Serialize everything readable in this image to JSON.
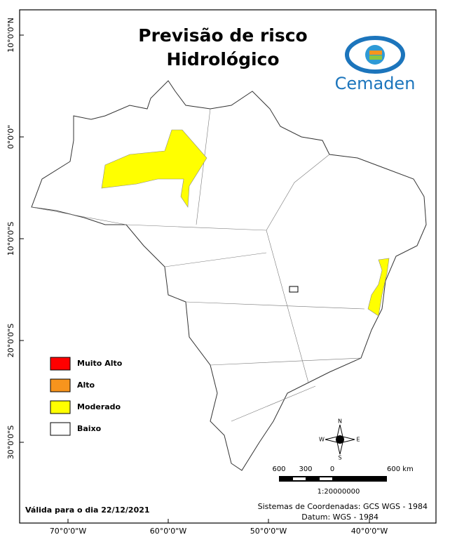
{
  "header": {
    "title_line1": "Previsão de risco",
    "title_line2": "Hidrológico",
    "logo_text": "Cemaden"
  },
  "legend": {
    "items": [
      {
        "label": "Muito Alto",
        "color": "#ff0000"
      },
      {
        "label": "Alto",
        "color": "#f7941d"
      },
      {
        "label": "Moderado",
        "color": "#ffff00"
      },
      {
        "label": "Baixo",
        "color": "#ffffff"
      }
    ]
  },
  "latitude_labels": [
    "10°0'0\"N",
    "0°0'0\"",
    "10°0'0\"S",
    "20°0'0\"S",
    "30°0'0\"S"
  ],
  "longitude_labels": [
    "70°0'0\"W",
    "60°0'0\"W",
    "50°0'0\"W",
    "40°0'0\"W"
  ],
  "compass": {
    "north": "N",
    "south": "S",
    "east": "E",
    "west": "W"
  },
  "scale_bar": {
    "labels": [
      "600",
      "300",
      "0",
      "600 km"
    ],
    "ratio": "1:20000000"
  },
  "footer": {
    "validity": "Válida para o dia 22/12/2021",
    "coordinates": "Sistemas de Coordenadas: GCS WGS - 1984",
    "datum": "Datum: WGS - 1984"
  }
}
